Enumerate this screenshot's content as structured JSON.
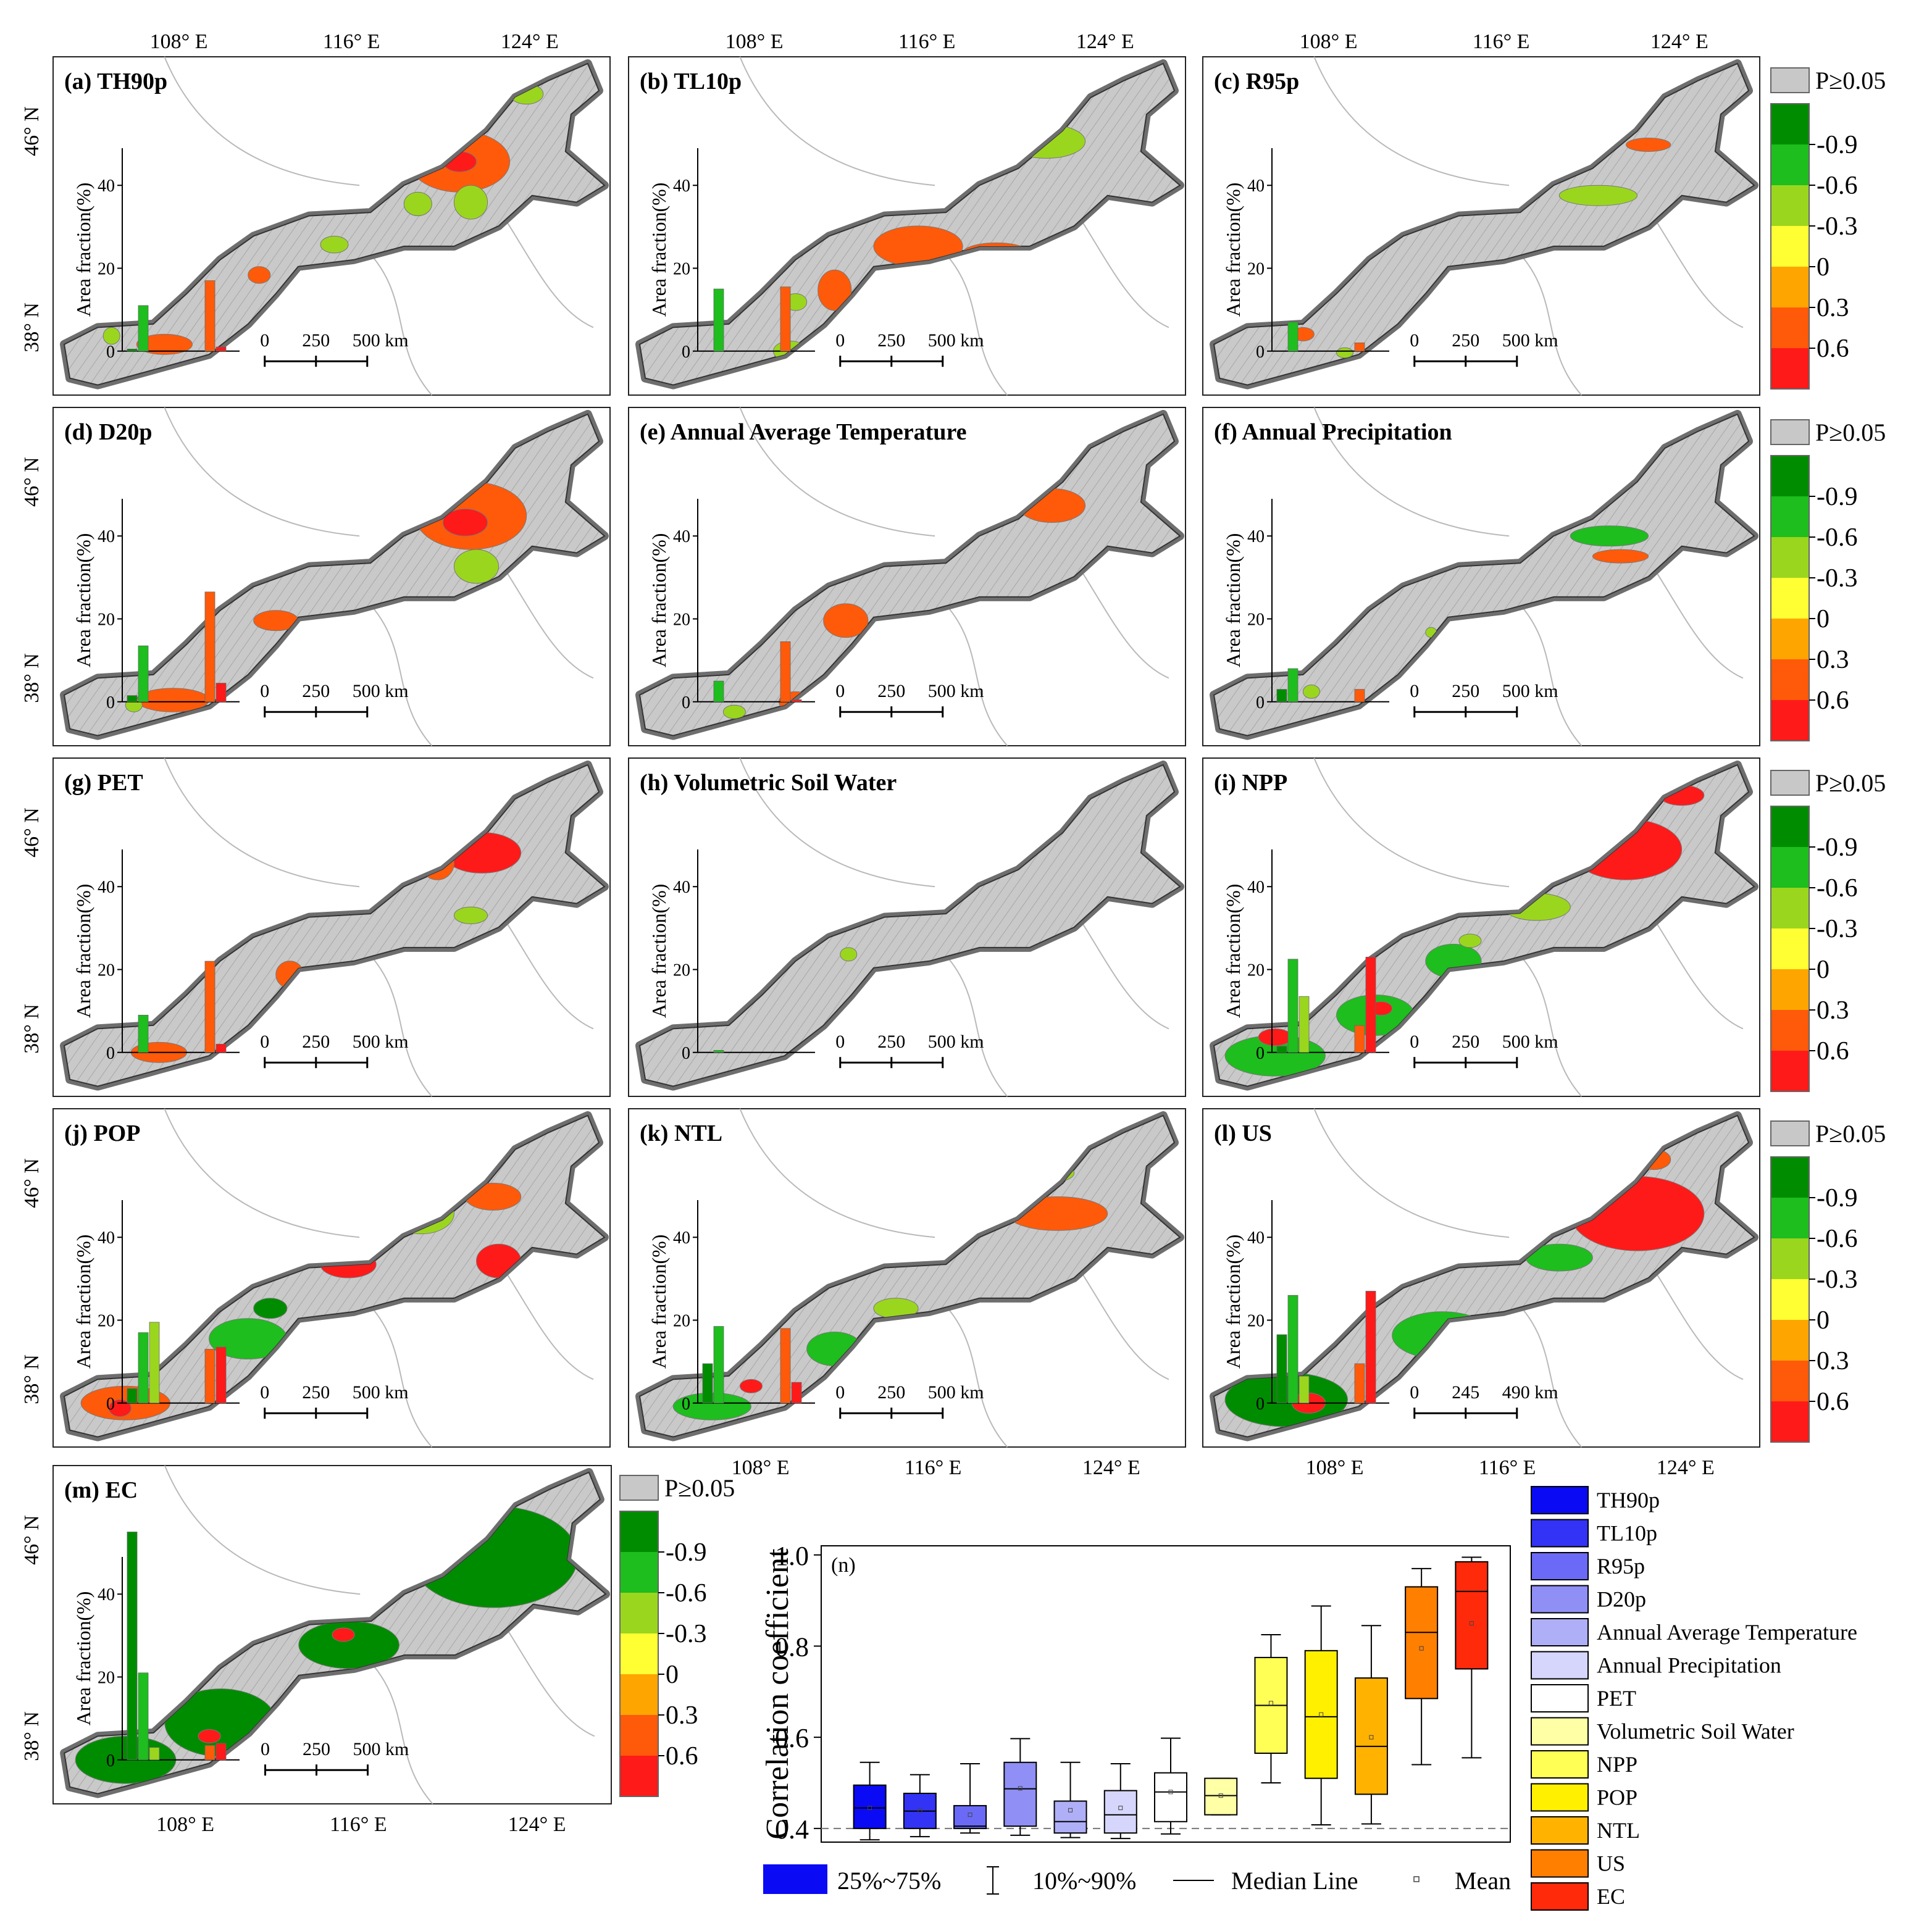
{
  "figure": {
    "top_lon_ticks": [
      "108° E",
      "116° E",
      "124° E"
    ],
    "lat_ticks": [
      "46° N",
      "38° N"
    ],
    "legend": {
      "insignificant_label": "P≥0.05",
      "ticks": [
        "-0.9",
        "-0.6",
        "-0.3",
        "0",
        "0.3",
        "0.6"
      ],
      "colors": [
        "#008C00",
        "#1DBE1D",
        "#9BD61E",
        "#FFFF33",
        "#FFA500",
        "#FF5A0A",
        "#FF1A1A"
      ],
      "gray": "#C8C8C8"
    },
    "inset_ylabel": "Area fraction(%)",
    "inset_yticks": [
      "0",
      "20",
      "40"
    ],
    "scalebar_default": [
      "0",
      "250",
      "500 km"
    ],
    "scalebar_us": [
      "0",
      "245",
      "490 km"
    ]
  },
  "chart_data": [
    {
      "type": "bar",
      "title": "(a) TH90p",
      "values": [
        0.5,
        11,
        0,
        0,
        17,
        1
      ]
    },
    {
      "type": "bar",
      "title": "(b) TL10p",
      "values": [
        0,
        15,
        0,
        0,
        15.5,
        0
      ]
    },
    {
      "type": "bar",
      "title": "(c) R95p",
      "values": [
        0,
        7,
        0,
        0,
        2,
        0
      ]
    },
    {
      "type": "bar",
      "title": "(d) D20p",
      "values": [
        1.5,
        13.5,
        0,
        0,
        26.5,
        4.5
      ]
    },
    {
      "type": "bar",
      "title": "(e) Annual Average Temperature",
      "values": [
        0,
        5,
        0,
        0,
        14.5,
        0.5
      ]
    },
    {
      "type": "bar",
      "title": "(f) Annual Precipitation",
      "values": [
        3,
        8,
        0,
        0,
        3,
        0
      ]
    },
    {
      "type": "bar",
      "title": "(g) PET",
      "values": [
        0,
        9,
        0,
        0,
        22,
        2
      ]
    },
    {
      "type": "bar",
      "title": "(h) Volumetric Soil Water",
      "values": [
        0,
        0.5,
        0,
        0,
        0,
        0
      ]
    },
    {
      "type": "bar",
      "title": "(i) NPP",
      "values": [
        1.5,
        22.5,
        13.5,
        0,
        6.5,
        23
      ]
    },
    {
      "type": "bar",
      "title": "(j) POP",
      "values": [
        3.5,
        17,
        19.5,
        0,
        13,
        13.5
      ]
    },
    {
      "type": "bar",
      "title": "(k) NTL",
      "values": [
        9.5,
        18.5,
        0,
        0,
        18,
        5
      ]
    },
    {
      "type": "bar",
      "title": "(l) US",
      "values": [
        16.5,
        26,
        6.5,
        0,
        9.5,
        27
      ]
    },
    {
      "type": "bar",
      "title": "(m) EC",
      "values": [
        55,
        21,
        3,
        0,
        3.5,
        4
      ]
    },
    {
      "type": "box",
      "title": "(n)",
      "ylabel": "Correlation coefficient",
      "ylim": [
        0.37,
        1.02
      ],
      "yticks": [
        "0.4",
        "0.6",
        "0.8",
        "1.0"
      ],
      "reference_line": 0.4,
      "series": [
        {
          "name": "TH90p",
          "color": "#0A0AF5",
          "q1": 0.4,
          "median": 0.445,
          "q3": 0.495,
          "p10": 0.375,
          "p90": 0.545,
          "mean": 0.445
        },
        {
          "name": "TL10p",
          "color": "#3333F5",
          "q1": 0.4,
          "median": 0.438,
          "q3": 0.477,
          "p10": 0.382,
          "p90": 0.518,
          "mean": 0.44
        },
        {
          "name": "R95p",
          "color": "#6A6AF7",
          "q1": 0.4,
          "median": 0.405,
          "q3": 0.45,
          "p10": 0.39,
          "p90": 0.542,
          "mean": 0.43
        },
        {
          "name": "D20p",
          "color": "#8F8FF5",
          "q1": 0.405,
          "median": 0.487,
          "q3": 0.545,
          "p10": 0.385,
          "p90": 0.597,
          "mean": 0.488
        },
        {
          "name": "Annual Average Temperature",
          "color": "#AFAFF8",
          "q1": 0.39,
          "median": 0.415,
          "q3": 0.46,
          "p10": 0.38,
          "p90": 0.545,
          "mean": 0.44
        },
        {
          "name": "Annual Precipitation",
          "color": "#D6D6FC",
          "q1": 0.39,
          "median": 0.43,
          "q3": 0.483,
          "p10": 0.378,
          "p90": 0.542,
          "mean": 0.445
        },
        {
          "name": "PET",
          "color": "#FFFFFF",
          "q1": 0.415,
          "median": 0.48,
          "q3": 0.522,
          "p10": 0.388,
          "p90": 0.598,
          "mean": 0.48
        },
        {
          "name": "Volumetric Soil Water",
          "color": "#FFFFA6",
          "q1": 0.43,
          "median": 0.472,
          "q3": 0.51,
          "p10": 0.43,
          "p90": 0.51,
          "mean": 0.472
        },
        {
          "name": "NPP",
          "color": "#FFFF55",
          "q1": 0.565,
          "median": 0.67,
          "q3": 0.775,
          "p10": 0.5,
          "p90": 0.825,
          "mean": 0.675
        },
        {
          "name": "POP",
          "color": "#FFF000",
          "q1": 0.51,
          "median": 0.645,
          "q3": 0.79,
          "p10": 0.408,
          "p90": 0.888,
          "mean": 0.65
        },
        {
          "name": "NTL",
          "color": "#FFB300",
          "q1": 0.475,
          "median": 0.58,
          "q3": 0.73,
          "p10": 0.41,
          "p90": 0.845,
          "mean": 0.6
        },
        {
          "name": "US",
          "color": "#FF7F00",
          "q1": 0.685,
          "median": 0.83,
          "q3": 0.93,
          "p10": 0.54,
          "p90": 0.97,
          "mean": 0.795
        },
        {
          "name": "EC",
          "color": "#FF2A0A",
          "q1": 0.75,
          "median": 0.92,
          "q3": 0.985,
          "p10": 0.555,
          "p90": 0.995,
          "mean": 0.85
        }
      ],
      "bottom_legend": [
        "25%~75%",
        "10%~90%",
        "Median Line",
        "Mean"
      ]
    }
  ]
}
